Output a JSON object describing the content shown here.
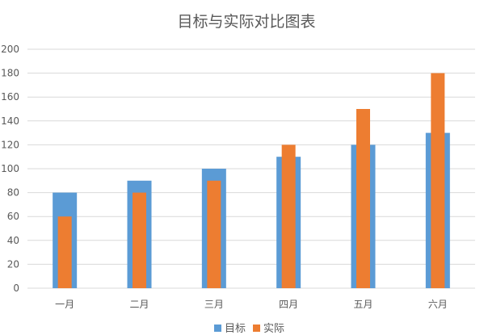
{
  "chart_data": {
    "type": "bar",
    "title": "目标与实际对比图表",
    "categories": [
      "一月",
      "二月",
      "三月",
      "四月",
      "五月",
      "六月"
    ],
    "series": [
      {
        "name": "目标",
        "values": [
          80,
          90,
          100,
          110,
          120,
          130
        ],
        "color": "#5B9BD5"
      },
      {
        "name": "实际",
        "values": [
          60,
          80,
          90,
          120,
          150,
          180
        ],
        "color": "#ED7D31"
      }
    ],
    "yticks": [
      0,
      20,
      40,
      60,
      80,
      100,
      120,
      140,
      160,
      180,
      200
    ],
    "ylim": [
      0,
      200
    ],
    "grid": true,
    "legend": "bottom",
    "overlap": true
  }
}
